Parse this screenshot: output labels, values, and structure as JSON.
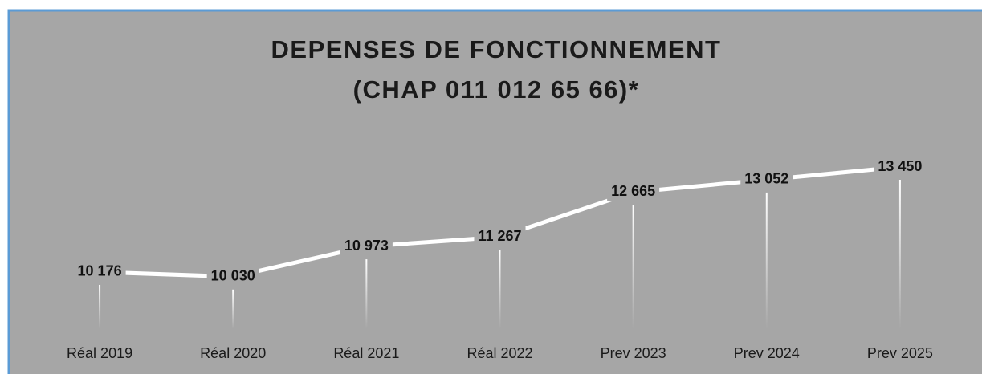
{
  "chart_data": {
    "type": "line",
    "title": [
      "DEPENSES DE FONCTIONNEMENT",
      "(CHAP 011 012 65 66)*"
    ],
    "categories": [
      "Réal 2019",
      "Réal 2020",
      "Réal 2021",
      "Réal 2022",
      "Prev 2023",
      "Prev 2024",
      "Prev 2025"
    ],
    "series": [
      {
        "color": "#ffffff",
        "values": [
          10176,
          10030,
          10973,
          11267,
          12665,
          13052,
          13450
        ],
        "value_labels": [
          "10 176",
          "10 030",
          "10 973",
          "11 267",
          "12 665",
          "13 052",
          "13 450"
        ]
      }
    ],
    "ylim": [
      8400,
      14000
    ]
  }
}
